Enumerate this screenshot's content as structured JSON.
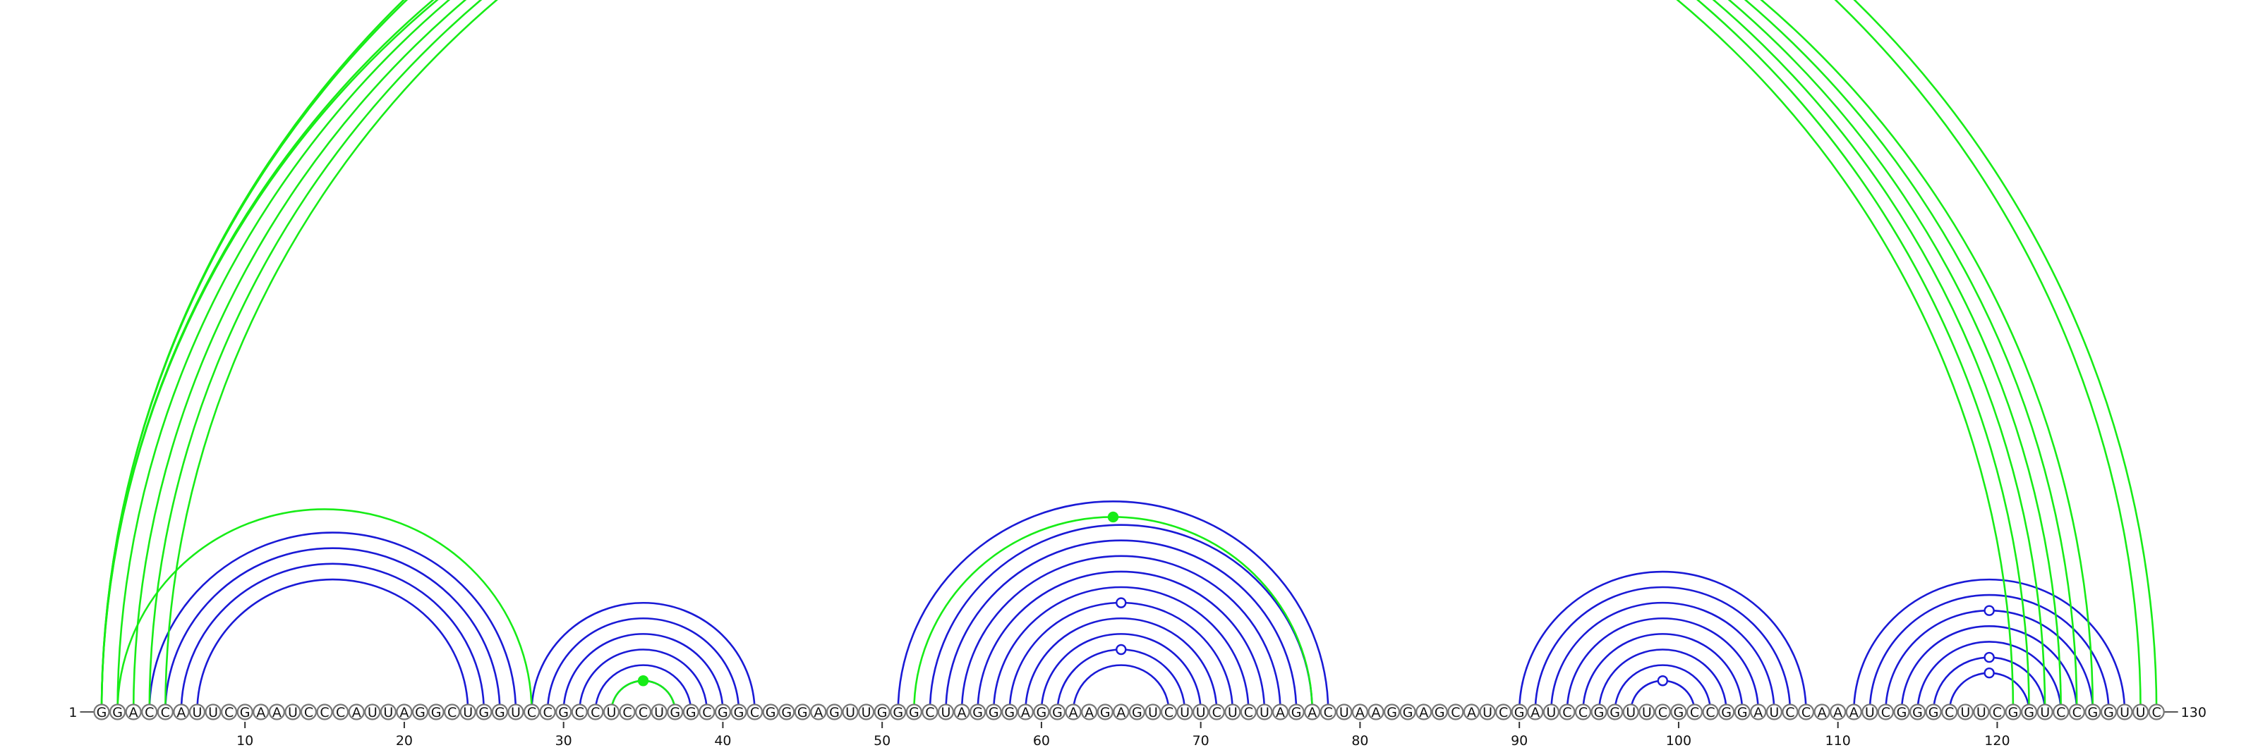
{
  "sequence": "GGACCAUUCGAAUCCCAUUAGGCUGGUCCGCCUCCUGGCGGCGGGAGUUGGGCUAGGGAGGAAGAGUCUUCUCUAGACUAAGGAGCAUCGAUCCGGUUCGCCGGAUCCAAAUCGGGCUUCGGUCCGGUUC",
  "start_label": "1",
  "end_label": "130",
  "ticks": [
    "10",
    "20",
    "30",
    "40",
    "50",
    "60",
    "70",
    "80",
    "90",
    "100",
    "110",
    "120"
  ],
  "colors": {
    "blue": "#1a1ad6",
    "green": "#17ec17"
  },
  "chart_data": {
    "type": "arc-diagram",
    "sequence_length": 130,
    "pairs_blue": [
      [
        4,
        27
      ],
      [
        5,
        26
      ],
      [
        6,
        25
      ],
      [
        7,
        24
      ],
      [
        28,
        42
      ],
      [
        29,
        41
      ],
      [
        30,
        40
      ],
      [
        31,
        39
      ],
      [
        32,
        38
      ],
      [
        33,
        37
      ],
      [
        51,
        78
      ],
      [
        53,
        77
      ],
      [
        54,
        76
      ],
      [
        55,
        75
      ],
      [
        56,
        74
      ],
      [
        57,
        73
      ],
      [
        58,
        72
      ],
      [
        59,
        71
      ],
      [
        60,
        70
      ],
      [
        61,
        69
      ],
      [
        62,
        68
      ],
      [
        90,
        108
      ],
      [
        91,
        107
      ],
      [
        92,
        106
      ],
      [
        93,
        105
      ],
      [
        94,
        104
      ],
      [
        95,
        103
      ],
      [
        96,
        102
      ],
      [
        97,
        101
      ],
      [
        111,
        128
      ],
      [
        112,
        127
      ],
      [
        113,
        126
      ],
      [
        114,
        125
      ],
      [
        115,
        124
      ],
      [
        116,
        123
      ],
      [
        117,
        122
      ]
    ],
    "pairs_green": [
      [
        1,
        121
      ],
      [
        1,
        122
      ],
      [
        2,
        123
      ],
      [
        3,
        124
      ],
      [
        4,
        125
      ],
      [
        5,
        126
      ],
      [
        1,
        129
      ],
      [
        1,
        130
      ],
      [
        2,
        28
      ],
      [
        33,
        37
      ],
      [
        52,
        77
      ]
    ],
    "markers": [
      {
        "color": "green",
        "filled": false,
        "arc": [
          1,
          130
        ]
      },
      {
        "color": "green",
        "filled": true,
        "arc": [
          33,
          37
        ]
      },
      {
        "color": "green",
        "filled": true,
        "arc": [
          52,
          77
        ]
      },
      {
        "color": "blue",
        "filled": false,
        "arc": [
          58,
          72
        ]
      },
      {
        "color": "blue",
        "filled": false,
        "arc": [
          61,
          69
        ]
      },
      {
        "color": "blue",
        "filled": false,
        "arc": [
          97,
          101
        ]
      },
      {
        "color": "blue",
        "filled": false,
        "arc": [
          113,
          126
        ]
      },
      {
        "color": "blue",
        "filled": false,
        "arc": [
          116,
          123
        ]
      },
      {
        "color": "blue",
        "filled": false,
        "arc": [
          117,
          122
        ]
      }
    ]
  }
}
